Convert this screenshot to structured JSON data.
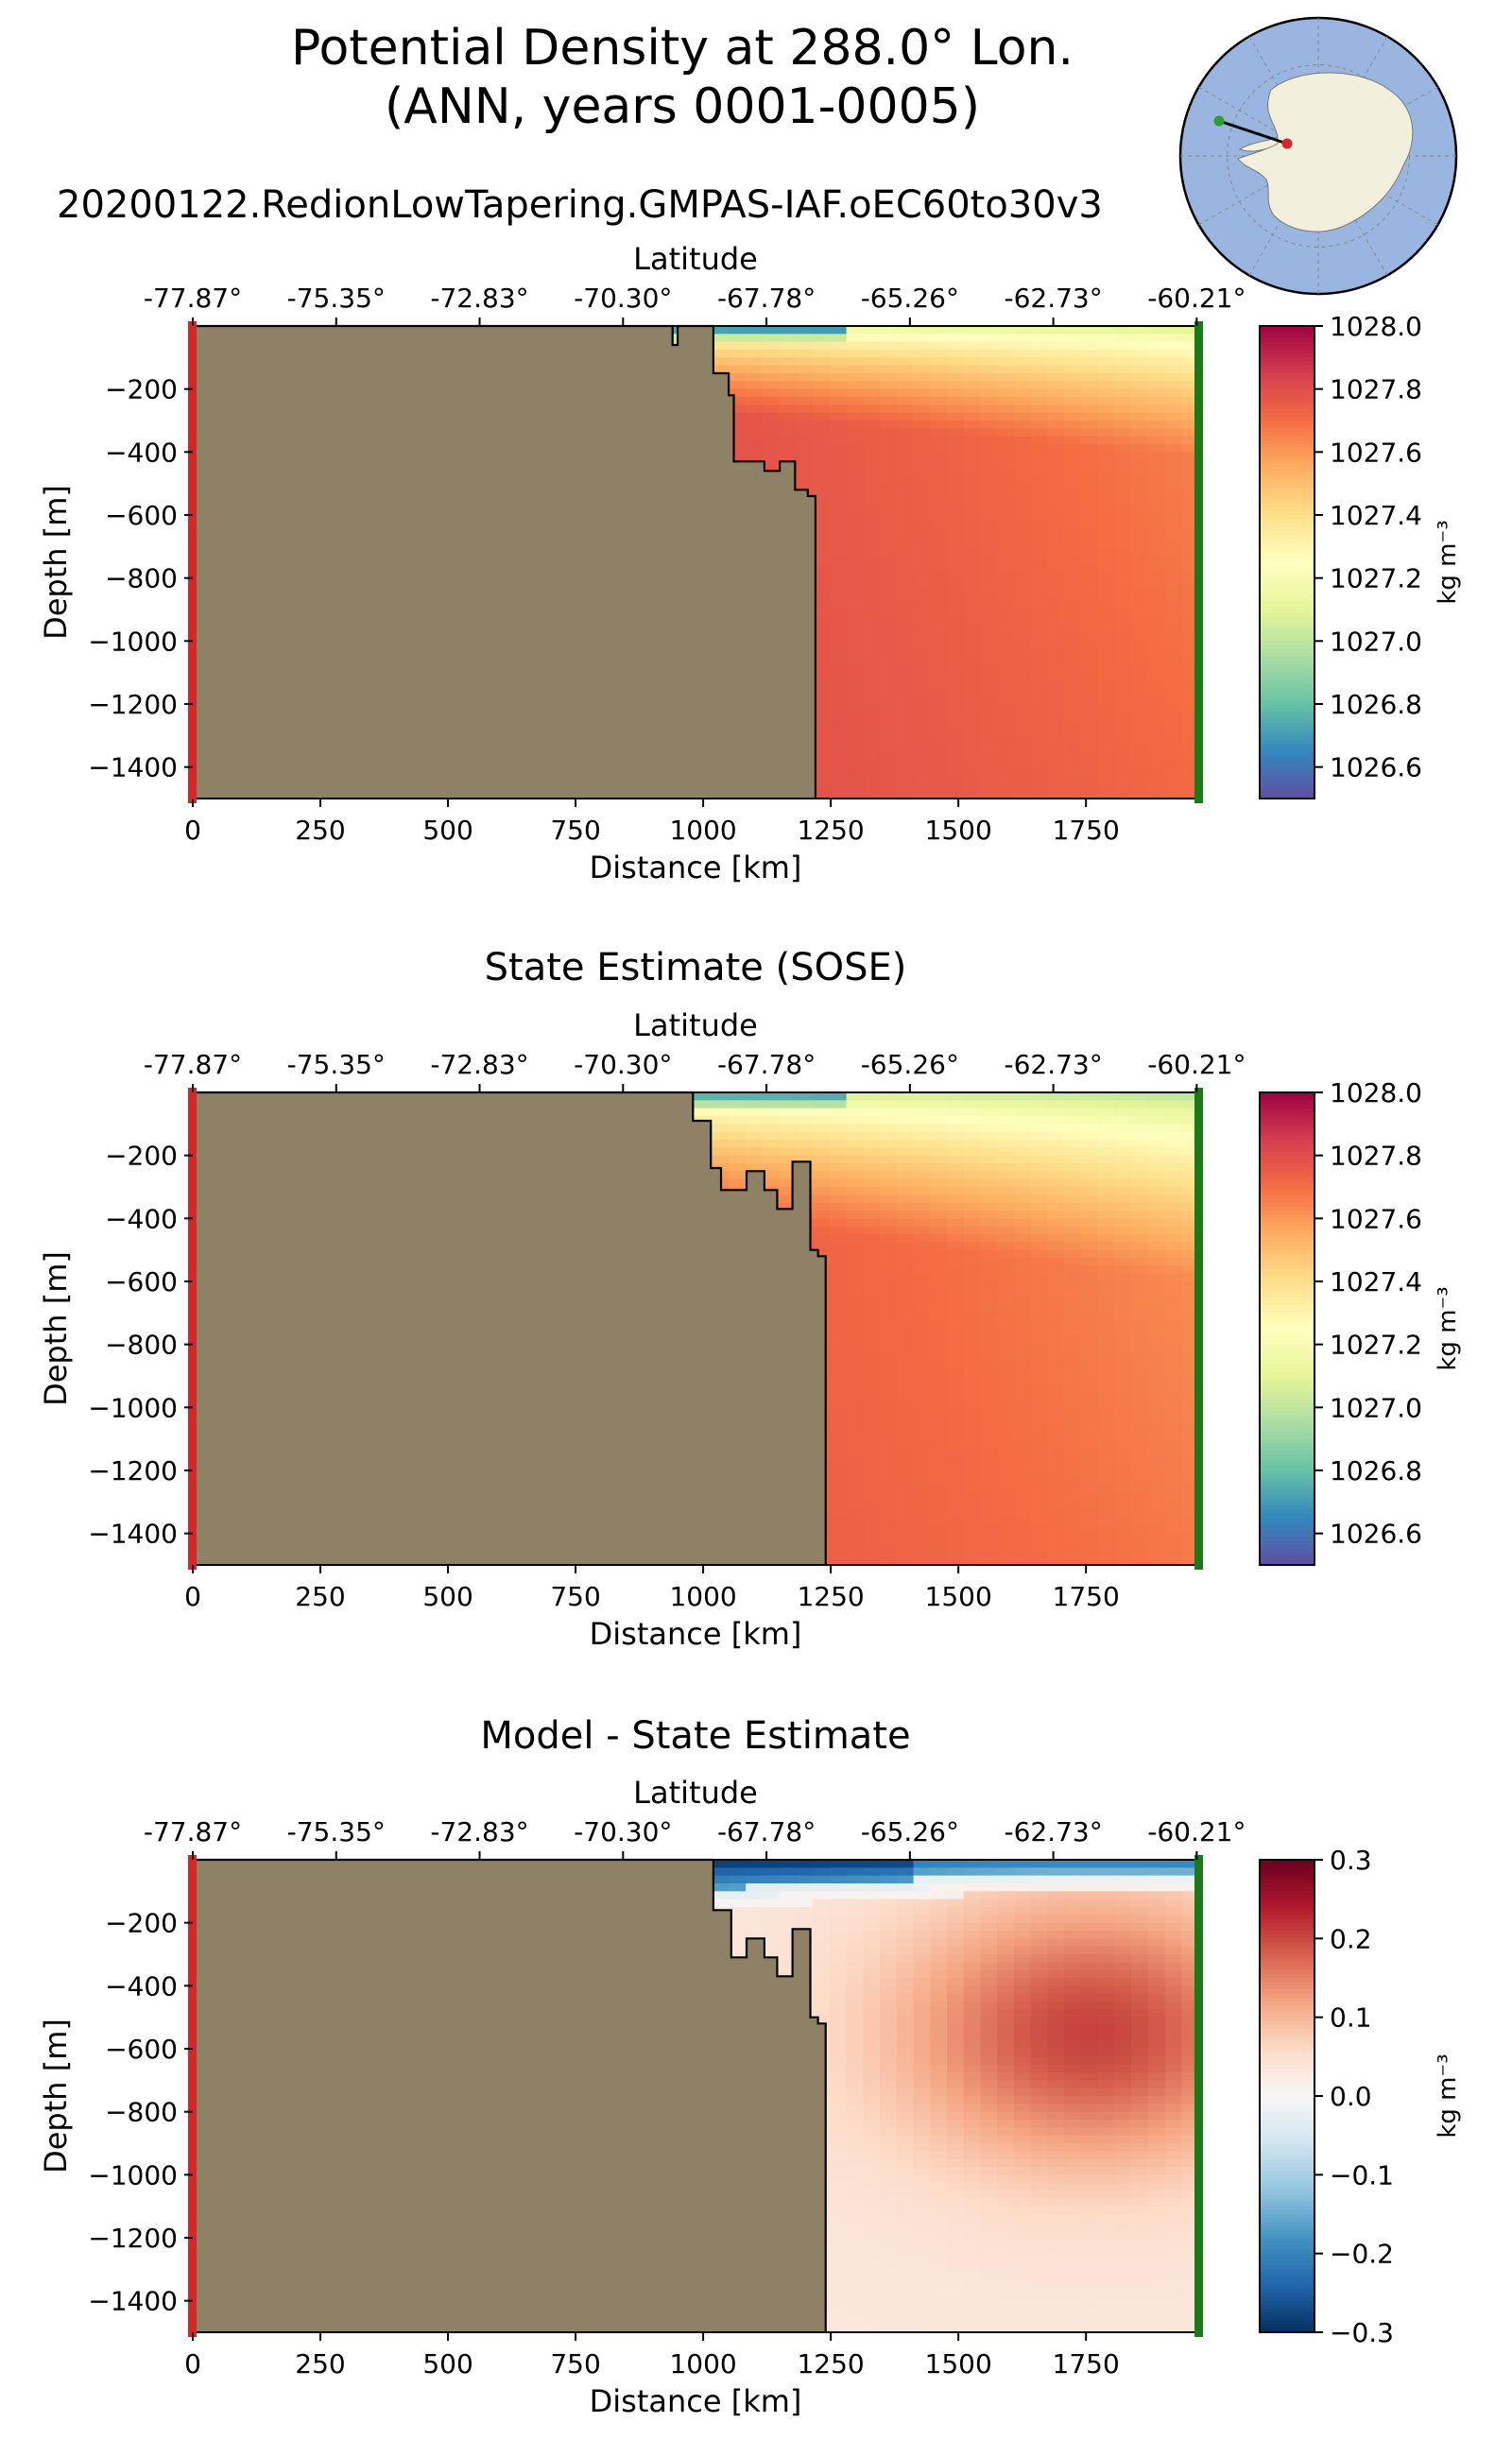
{
  "figure": {
    "title_line1": "Potential Density at 288.0° Lon.",
    "title_line2": "(ANN, years 0001-0005)",
    "subtitle": "20200122.RedionLowTapering.GMPAS-IAF.oEC60to30v3"
  },
  "inset_map": {
    "projection": "south-polar-stereographic",
    "ocean_color": "#9ab6e0",
    "land_color": "#f2efdc",
    "transect_start_color": "#2ca02c",
    "transect_end_color": "#d62728"
  },
  "chart_data": [
    {
      "type": "heatmap",
      "title": "",
      "xlabel": "Distance [km]",
      "ylabel": "Depth [m]",
      "top_xlabel": "Latitude",
      "colorbar_label": "kg m⁻³",
      "colormap": "Spectral_r",
      "xlim": [
        0,
        1970
      ],
      "ylim": [
        -1500,
        0
      ],
      "xticks": [
        0,
        250,
        500,
        750,
        1000,
        1250,
        1500,
        1750
      ],
      "yticks": [
        -200,
        -400,
        -600,
        -800,
        -1000,
        -1200,
        -1400
      ],
      "lat_ticks": [
        "-77.87°",
        "-75.35°",
        "-72.83°",
        "-70.30°",
        "-67.78°",
        "-65.26°",
        "-62.73°",
        "-60.21°"
      ],
      "lat_tick_km": [
        0,
        281,
        562,
        843,
        1124,
        1405,
        1686,
        1967
      ],
      "clim": [
        1026.5,
        1028.0
      ],
      "colorbar_ticks": [
        1026.6,
        1026.8,
        1027.0,
        1027.2,
        1027.4,
        1027.6,
        1027.8,
        1028.0
      ],
      "land_color": "#8f8166",
      "bathymetry_km": [
        [
          0,
          0
        ],
        [
          940,
          0
        ],
        [
          940,
          -60
        ],
        [
          950,
          -60
        ],
        [
          950,
          0
        ],
        [
          1020,
          0
        ],
        [
          1020,
          -150
        ],
        [
          1050,
          -150
        ],
        [
          1050,
          -220
        ],
        [
          1060,
          -220
        ],
        [
          1060,
          -430
        ],
        [
          1120,
          -430
        ],
        [
          1120,
          -460
        ],
        [
          1150,
          -460
        ],
        [
          1150,
          -430
        ],
        [
          1180,
          -430
        ],
        [
          1180,
          -520
        ],
        [
          1205,
          -520
        ],
        [
          1205,
          -540
        ],
        [
          1220,
          -540
        ],
        [
          1220,
          -1500
        ],
        [
          0,
          -1500
        ]
      ],
      "field": {
        "surface_min": 1026.6,
        "shelf_surface": 1027.0,
        "offshore_surface": 1027.2,
        "deep_value": 1027.82,
        "thermocline_depth_m": 180
      }
    },
    {
      "type": "heatmap",
      "title": "State Estimate (SOSE)",
      "xlabel": "Distance [km]",
      "ylabel": "Depth [m]",
      "top_xlabel": "Latitude",
      "colorbar_label": "kg m⁻³",
      "colormap": "Spectral_r",
      "xlim": [
        0,
        1970
      ],
      "ylim": [
        -1500,
        0
      ],
      "xticks": [
        0,
        250,
        500,
        750,
        1000,
        1250,
        1500,
        1750
      ],
      "yticks": [
        -200,
        -400,
        -600,
        -800,
        -1000,
        -1200,
        -1400
      ],
      "lat_ticks": [
        "-77.87°",
        "-75.35°",
        "-72.83°",
        "-70.30°",
        "-67.78°",
        "-65.26°",
        "-62.73°",
        "-60.21°"
      ],
      "lat_tick_km": [
        0,
        281,
        562,
        843,
        1124,
        1405,
        1686,
        1967
      ],
      "clim": [
        1026.5,
        1028.0
      ],
      "colorbar_ticks": [
        1026.6,
        1026.8,
        1027.0,
        1027.2,
        1027.4,
        1027.6,
        1027.8,
        1028.0
      ],
      "land_color": "#8f8166",
      "bathymetry_km": [
        [
          0,
          0
        ],
        [
          980,
          0
        ],
        [
          980,
          -90
        ],
        [
          1015,
          -90
        ],
        [
          1015,
          -240
        ],
        [
          1035,
          -240
        ],
        [
          1035,
          -310
        ],
        [
          1085,
          -310
        ],
        [
          1085,
          -250
        ],
        [
          1120,
          -250
        ],
        [
          1120,
          -310
        ],
        [
          1145,
          -310
        ],
        [
          1145,
          -370
        ],
        [
          1175,
          -370
        ],
        [
          1175,
          -220
        ],
        [
          1210,
          -220
        ],
        [
          1210,
          -500
        ],
        [
          1225,
          -500
        ],
        [
          1225,
          -520
        ],
        [
          1240,
          -520
        ],
        [
          1240,
          -1500
        ],
        [
          0,
          -1500
        ]
      ],
      "field": {
        "surface_min": 1026.7,
        "shelf_surface": 1027.0,
        "offshore_surface": 1027.1,
        "deep_value": 1027.78,
        "thermocline_depth_m": 260
      }
    },
    {
      "type": "heatmap",
      "title": "Model - State Estimate",
      "xlabel": "Distance [km]",
      "ylabel": "Depth [m]",
      "top_xlabel": "Latitude",
      "colorbar_label": "kg m⁻³",
      "colormap": "RdBu_r",
      "xlim": [
        0,
        1970
      ],
      "ylim": [
        -1500,
        0
      ],
      "xticks": [
        0,
        250,
        500,
        750,
        1000,
        1250,
        1500,
        1750
      ],
      "yticks": [
        -200,
        -400,
        -600,
        -800,
        -1000,
        -1200,
        -1400
      ],
      "lat_ticks": [
        "-77.87°",
        "-75.35°",
        "-72.83°",
        "-70.30°",
        "-67.78°",
        "-65.26°",
        "-62.73°",
        "-60.21°"
      ],
      "lat_tick_km": [
        0,
        281,
        562,
        843,
        1124,
        1405,
        1686,
        1967
      ],
      "clim": [
        -0.3,
        0.3
      ],
      "colorbar_ticks": [
        -0.3,
        -0.2,
        -0.1,
        0.0,
        0.1,
        0.2,
        0.3
      ],
      "colorbar_tick_labels": [
        "−0.3",
        "−0.2",
        "−0.1",
        "0.0",
        "0.1",
        "0.2",
        "0.3"
      ],
      "land_color": "#8f8166",
      "bathymetry_km": [
        [
          0,
          0
        ],
        [
          1020,
          0
        ],
        [
          1020,
          -160
        ],
        [
          1055,
          -160
        ],
        [
          1055,
          -310
        ],
        [
          1085,
          -310
        ],
        [
          1085,
          -250
        ],
        [
          1120,
          -250
        ],
        [
          1120,
          -310
        ],
        [
          1145,
          -310
        ],
        [
          1145,
          -370
        ],
        [
          1175,
          -370
        ],
        [
          1175,
          -220
        ],
        [
          1210,
          -220
        ],
        [
          1210,
          -500
        ],
        [
          1225,
          -500
        ],
        [
          1225,
          -520
        ],
        [
          1240,
          -520
        ],
        [
          1240,
          -1500
        ],
        [
          0,
          -1500
        ]
      ],
      "field": {
        "surface_anomaly": -0.3,
        "shelf_anomaly": -0.3,
        "max_positive_anomaly": 0.2,
        "max_positive_center_km": 1760,
        "max_positive_center_depth_m": -550
      }
    }
  ]
}
